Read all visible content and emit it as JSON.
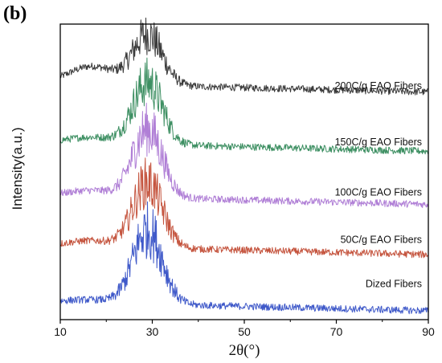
{
  "panel_label": "(b)",
  "chart_data": {
    "type": "line",
    "xlabel": "2θ(°)",
    "ylabel": "Intensity(a.u.)",
    "xlim": [
      10,
      90
    ],
    "xticks": [
      10,
      30,
      50,
      70,
      90
    ],
    "yticks_shown": false,
    "grid": false,
    "legend": "inline labels to the right of each curve",
    "peak_2theta": 29,
    "series": [
      {
        "name": "200C/g EAO Fibers",
        "color": "#3a3a3a",
        "baseline": 0.8,
        "peak_height": 0.17,
        "shoulder_height": 0.06
      },
      {
        "name": "150C/g EAO Fibers",
        "color": "#3d8f62",
        "baseline": 0.6,
        "peak_height": 0.21,
        "shoulder_height": 0.02
      },
      {
        "name": "100C/g EAO Fibers",
        "color": "#b07fd6",
        "baseline": 0.42,
        "peak_height": 0.23,
        "shoulder_height": 0.02
      },
      {
        "name": "50C/g EAO Fibers",
        "color": "#c5553f",
        "baseline": 0.25,
        "peak_height": 0.22,
        "shoulder_height": 0.02
      },
      {
        "name": "Dized Fibers",
        "color": "#3f59c9",
        "baseline": 0.06,
        "peak_height": 0.25,
        "shoulder_height": 0.01
      }
    ]
  }
}
